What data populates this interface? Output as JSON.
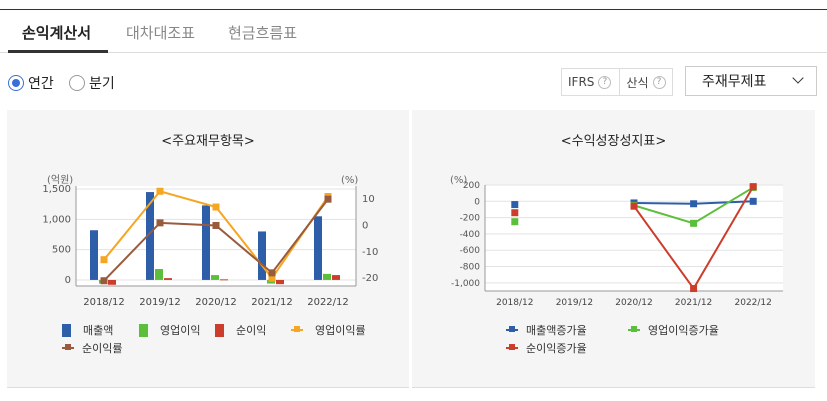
{
  "tabs": [
    {
      "label": "손익계산서",
      "active": true
    },
    {
      "label": "대차대조표",
      "active": false
    },
    {
      "label": "현금흐름표",
      "active": false
    }
  ],
  "period_options": [
    {
      "label": "연간",
      "selected": true
    },
    {
      "label": "분기",
      "selected": false
    }
  ],
  "ifrs_label": "IFRS",
  "calc_label": "산식",
  "select_value": "주재무제표",
  "left_chart": {
    "title": "<주요재무항목>",
    "left_unit": "(억원)",
    "right_unit": "(%)",
    "y_ticks": [
      "1,500",
      "1,000",
      "500",
      "0"
    ],
    "y2_ticks": [
      "10",
      "0",
      "-10",
      "-20"
    ],
    "legend": [
      "매출액",
      "영업이익",
      "순이익",
      "영업이익률",
      "순이익률"
    ]
  },
  "right_chart": {
    "title": "<수익성장성지표>",
    "unit": "(%)",
    "y_ticks": [
      "200",
      "0",
      "-200",
      "-400",
      "-600",
      "-800",
      "-1,000"
    ],
    "legend": [
      "매출액증가율",
      "영업이익증가율",
      "순이익증가율"
    ]
  },
  "chart_data": [
    {
      "type": "bar",
      "title": "<주요재무항목>",
      "categories": [
        "2018/12",
        "2019/12",
        "2020/12",
        "2021/12",
        "2022/12"
      ],
      "ylim": [
        -100,
        1550
      ],
      "y2lim": [
        -23,
        15
      ],
      "series": [
        {
          "name": "매출액",
          "axis": "left",
          "kind": "bar",
          "color": "#2f5ea9",
          "values": [
            820,
            1450,
            1230,
            800,
            1050
          ]
        },
        {
          "name": "영업이익",
          "axis": "left",
          "kind": "bar",
          "color": "#5cbf3b",
          "values": [
            -60,
            180,
            80,
            -60,
            100
          ]
        },
        {
          "name": "순이익",
          "axis": "left",
          "kind": "bar",
          "color": "#cc3d2b",
          "values": [
            -80,
            30,
            10,
            -70,
            80
          ]
        },
        {
          "name": "영업이익률",
          "axis": "right",
          "kind": "line",
          "color": "#f5a623",
          "values": [
            -13,
            13,
            7,
            -20,
            11
          ]
        },
        {
          "name": "순이익률",
          "axis": "right",
          "kind": "line",
          "color": "#9a5a3c",
          "values": [
            -21,
            1,
            0,
            -18,
            10
          ]
        }
      ]
    },
    {
      "type": "line",
      "title": "<수익성장성지표>",
      "categories": [
        "2018/12",
        "2019/12",
        "2020/12",
        "2021/12",
        "2022/12"
      ],
      "ylim": [
        -1100,
        200
      ],
      "series": [
        {
          "name": "매출액증가율",
          "color": "#2f5ea9",
          "values": [
            -40,
            null,
            -20,
            -30,
            0
          ]
        },
        {
          "name": "영업이익증가율",
          "color": "#5cbf3b",
          "values": [
            -250,
            null,
            -50,
            -270,
            170
          ]
        },
        {
          "name": "순이익증가율",
          "color": "#cc3d2b",
          "values": [
            -140,
            null,
            -60,
            -1070,
            180
          ]
        }
      ]
    }
  ]
}
